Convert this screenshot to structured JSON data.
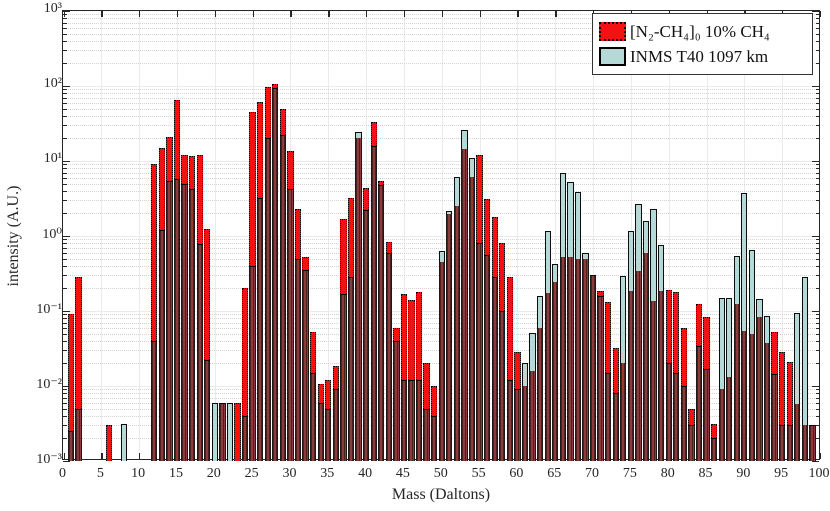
{
  "chart_data": {
    "type": "bar",
    "title": "",
    "xlabel": "Mass (Daltons)",
    "ylabel": "intensity (A.U.)",
    "x_axis": {
      "min": 0,
      "max": 100,
      "tick_step": 5,
      "tick_labels": [
        "0",
        "5",
        "10",
        "15",
        "20",
        "25",
        "30",
        "35",
        "40",
        "45",
        "50",
        "55",
        "60",
        "65",
        "70",
        "75",
        "80",
        "85",
        "90",
        "95",
        "100"
      ]
    },
    "y_axis": {
      "scale": "log",
      "min_exp": -3,
      "max_exp": 3,
      "tick_labels": [
        "10⁻³",
        "10⁻²",
        "10⁻¹",
        "10⁰",
        "10¹",
        "10²",
        "10³"
      ]
    },
    "grid": {
      "vertical": "solid-light",
      "horizontal_major": "solid-light",
      "horizontal_minor": "dotted-light"
    },
    "legend_position": "top-right",
    "colors": {
      "red_series": "#f31111",
      "blue_series": "#b4d9d7",
      "overlap": "#8c3a3a",
      "axis": "#262626"
    },
    "series": [
      {
        "name": "[N₂-CH₄]₀ 10% CH₄",
        "role": "red",
        "points": [
          [
            1,
            0.09
          ],
          [
            2,
            0.28
          ],
          [
            6,
            0.003
          ],
          [
            12,
            9
          ],
          [
            13,
            15
          ],
          [
            14,
            21
          ],
          [
            15,
            65
          ],
          [
            16,
            12
          ],
          [
            17,
            11.5
          ],
          [
            18,
            12
          ],
          [
            19,
            1.25
          ],
          [
            21,
            0.006
          ],
          [
            23,
            0.006
          ],
          [
            24,
            0.2
          ],
          [
            25,
            45
          ],
          [
            26,
            62
          ],
          [
            27,
            97
          ],
          [
            28,
            105
          ],
          [
            29,
            50
          ],
          [
            30,
            13.5
          ],
          [
            31,
            2.3
          ],
          [
            32,
            0.52
          ],
          [
            33,
            0.052
          ],
          [
            34,
            0.0105
          ],
          [
            35,
            0.012
          ],
          [
            36,
            0.0185
          ],
          [
            37,
            1.7
          ],
          [
            38,
            3.2
          ],
          [
            39,
            20
          ],
          [
            40,
            4.3
          ],
          [
            41,
            33
          ],
          [
            42,
            5.4
          ],
          [
            43,
            0.82
          ],
          [
            44,
            0.06
          ],
          [
            45,
            0.17
          ],
          [
            46,
            0.14
          ],
          [
            47,
            0.18
          ],
          [
            48,
            0.02
          ],
          [
            49,
            0.01
          ],
          [
            50,
            0.45
          ],
          [
            51,
            1.95
          ],
          [
            52,
            2.5
          ],
          [
            53,
            14.5
          ],
          [
            54,
            6.1
          ],
          [
            55,
            12
          ],
          [
            56,
            3.1
          ],
          [
            57,
            1.8
          ],
          [
            58,
            0.8
          ],
          [
            59,
            0.28
          ],
          [
            60,
            0.028
          ],
          [
            61,
            0.01
          ],
          [
            62,
            0.016
          ],
          [
            63,
            0.06
          ],
          [
            64,
            0.175
          ],
          [
            65,
            0.24
          ],
          [
            66,
            0.52
          ],
          [
            67,
            0.52
          ],
          [
            68,
            0.5
          ],
          [
            69,
            0.5
          ],
          [
            70,
            0.3
          ],
          [
            71,
            0.185
          ],
          [
            72,
            0.13
          ],
          [
            73,
            0.032
          ],
          [
            74,
            0.02
          ],
          [
            75,
            0.185
          ],
          [
            76,
            0.34
          ],
          [
            77,
            0.6
          ],
          [
            78,
            0.136
          ],
          [
            79,
            0.185
          ],
          [
            80,
            0.19
          ],
          [
            81,
            0.18
          ],
          [
            82,
            0.06
          ],
          [
            83,
            0.005
          ],
          [
            84,
            0.123
          ],
          [
            85,
            0.082
          ],
          [
            86,
            0.0031
          ],
          [
            87,
            0.009
          ],
          [
            88,
            0.013
          ],
          [
            89,
            0.125
          ],
          [
            90,
            0.054
          ],
          [
            91,
            0.05
          ],
          [
            92,
            0.082
          ],
          [
            93,
            0.038
          ],
          [
            94,
            0.052
          ],
          [
            95,
            0.028
          ],
          [
            96,
            0.021
          ],
          [
            97,
            0.0057
          ],
          [
            98,
            0.003
          ],
          [
            99,
            0.003
          ]
        ]
      },
      {
        "name": "INMS T40 1097 km",
        "role": "blue",
        "points": [
          [
            1,
            0.0025
          ],
          [
            2,
            0.005
          ],
          [
            8,
            0.0031
          ],
          [
            12,
            0.04
          ],
          [
            13,
            1.2
          ],
          [
            14,
            5.4
          ],
          [
            15,
            5.8
          ],
          [
            16,
            5.0
          ],
          [
            17,
            4.2
          ],
          [
            18,
            0.78
          ],
          [
            19,
            0.022
          ],
          [
            20,
            0.006
          ],
          [
            21,
            0.006
          ],
          [
            22,
            0.006
          ],
          [
            24,
            0.004
          ],
          [
            25,
            0.4
          ],
          [
            26,
            3.2
          ],
          [
            27,
            20
          ],
          [
            28,
            95
          ],
          [
            29,
            22
          ],
          [
            30,
            4.2
          ],
          [
            31,
            0.5
          ],
          [
            32,
            0.35
          ],
          [
            33,
            0.015
          ],
          [
            34,
            0.006
          ],
          [
            35,
            0.005
          ],
          [
            36,
            0.009
          ],
          [
            37,
            0.17
          ],
          [
            38,
            0.28
          ],
          [
            39,
            24
          ],
          [
            40,
            2.2
          ],
          [
            41,
            16
          ],
          [
            42,
            4.8
          ],
          [
            43,
            0.6
          ],
          [
            44,
            0.04
          ],
          [
            45,
            0.012
          ],
          [
            46,
            0.012
          ],
          [
            47,
            0.012
          ],
          [
            48,
            0.005
          ],
          [
            49,
            0.004
          ],
          [
            50,
            0.63
          ],
          [
            51,
            2.15
          ],
          [
            52,
            6.1
          ],
          [
            53,
            26
          ],
          [
            54,
            11
          ],
          [
            55,
            0.8
          ],
          [
            56,
            0.55
          ],
          [
            57,
            0.28
          ],
          [
            58,
            0.1
          ],
          [
            59,
            0.012
          ],
          [
            60,
            0.009
          ],
          [
            61,
            0.02
          ],
          [
            62,
            0.051
          ],
          [
            63,
            0.158
          ],
          [
            64,
            1.17
          ],
          [
            65,
            0.42
          ],
          [
            66,
            7.0
          ],
          [
            67,
            5.3
          ],
          [
            68,
            3.9
          ],
          [
            69,
            0.6
          ],
          [
            70,
            0.3
          ],
          [
            71,
            0.16
          ],
          [
            72,
            0.015
          ],
          [
            73,
            0.008
          ],
          [
            74,
            0.29
          ],
          [
            75,
            1.17
          ],
          [
            76,
            2.64
          ],
          [
            77,
            1.58
          ],
          [
            78,
            2.28
          ],
          [
            79,
            0.77
          ],
          [
            80,
            0.02
          ],
          [
            81,
            0.015
          ],
          [
            82,
            0.01
          ],
          [
            83,
            0.003
          ],
          [
            84,
            0.034
          ],
          [
            85,
            0.017
          ],
          [
            86,
            0.002
          ],
          [
            87,
            0.15
          ],
          [
            88,
            0.15
          ],
          [
            89,
            0.54
          ],
          [
            90,
            3.78
          ],
          [
            91,
            0.66
          ],
          [
            92,
            0.144
          ],
          [
            93,
            0.086
          ],
          [
            94,
            0.0145
          ],
          [
            95,
            0.003
          ],
          [
            96,
            0.003
          ],
          [
            97,
            0.095
          ],
          [
            98,
            0.28
          ],
          [
            99,
            0.003
          ]
        ]
      }
    ]
  },
  "legend": {
    "entries": [
      {
        "label": "[N₂-CH₄]₀ 10% CH₄",
        "swatch": "red-dotted"
      },
      {
        "label": "INMS T40 1097 km",
        "swatch": "teal-solid"
      }
    ]
  }
}
